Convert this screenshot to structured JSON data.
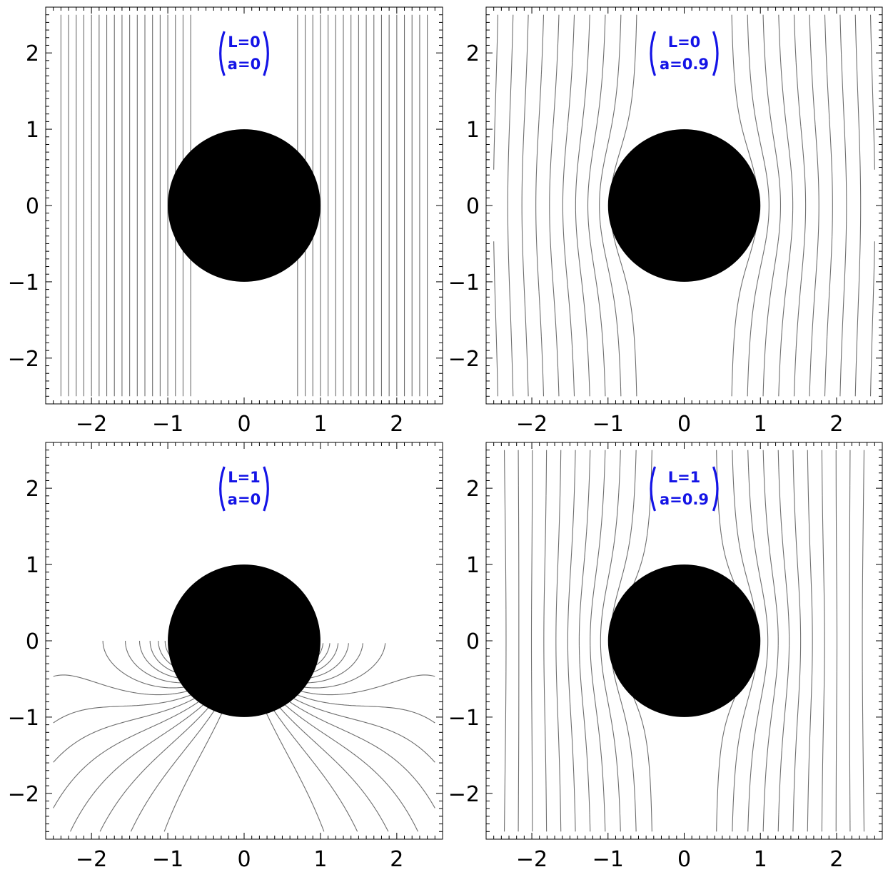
{
  "chart_data": [
    {
      "type": "line",
      "title": "",
      "xlabel": "",
      "ylabel": "",
      "xlim": [
        -2.6,
        2.6
      ],
      "ylim": [
        -2.6,
        2.6
      ],
      "x_ticks": [
        -2,
        -1,
        0,
        1,
        2
      ],
      "y_ticks": [
        -2,
        -1,
        0,
        1,
        2
      ],
      "annotation": {
        "lines": [
          "L=0",
          "a=0"
        ],
        "color": "#1414e6"
      },
      "disk": {
        "center": [
          0,
          0
        ],
        "radius": 1,
        "color": "#000000"
      },
      "params": {
        "L": 0,
        "a": 0
      },
      "line_color": "#6e6e6e"
    },
    {
      "type": "line",
      "title": "",
      "xlabel": "",
      "ylabel": "",
      "xlim": [
        -2.6,
        2.6
      ],
      "ylim": [
        -2.6,
        2.6
      ],
      "x_ticks": [
        -2,
        -1,
        0,
        1,
        2
      ],
      "y_ticks": [
        -2,
        -1,
        0,
        1,
        2
      ],
      "annotation": {
        "lines": [
          "L=0",
          "a=0.9"
        ],
        "color": "#1414e6"
      },
      "disk": {
        "center": [
          0,
          0
        ],
        "radius": 1,
        "color": "#000000"
      },
      "params": {
        "L": 0,
        "a": 0.9
      },
      "line_color": "#6e6e6e"
    },
    {
      "type": "line",
      "title": "",
      "xlabel": "",
      "ylabel": "",
      "xlim": [
        -2.6,
        2.6
      ],
      "ylim": [
        -2.6,
        2.6
      ],
      "x_ticks": [
        -2,
        -1,
        0,
        1,
        2
      ],
      "y_ticks": [
        -2,
        -1,
        0,
        1,
        2
      ],
      "annotation": {
        "lines": [
          "L=1",
          "a=0"
        ],
        "color": "#1414e6"
      },
      "disk": {
        "center": [
          0,
          0
        ],
        "radius": 1,
        "color": "#000000"
      },
      "params": {
        "L": 1,
        "a": 0
      },
      "line_color": "#6e6e6e"
    },
    {
      "type": "line",
      "title": "",
      "xlabel": "",
      "ylabel": "",
      "xlim": [
        -2.6,
        2.6
      ],
      "ylim": [
        -2.6,
        2.6
      ],
      "x_ticks": [
        -2,
        -1,
        0,
        1,
        2
      ],
      "y_ticks": [
        -2,
        -1,
        0,
        1,
        2
      ],
      "annotation": {
        "lines": [
          "L=1",
          "a=0.9"
        ],
        "color": "#1414e6"
      },
      "disk": {
        "center": [
          0,
          0
        ],
        "radius": 1,
        "color": "#000000"
      },
      "params": {
        "L": 1,
        "a": 0.9
      },
      "line_color": "#6e6e6e"
    }
  ]
}
